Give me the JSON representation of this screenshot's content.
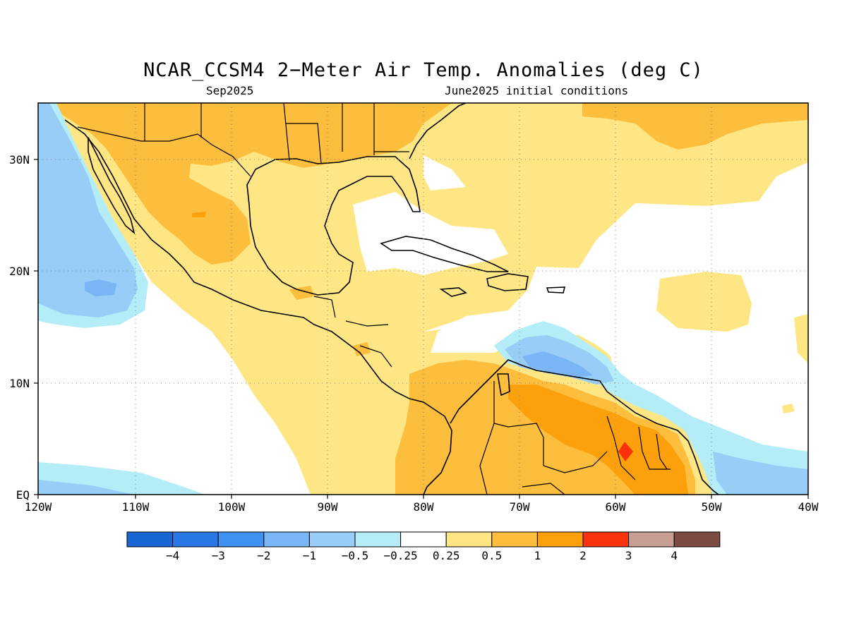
{
  "title": "NCAR_CCSM4 2−Meter Air Temp. Anomalies (deg C)",
  "subtitle_left": "Sep2025",
  "subtitle_right": "June2025 initial conditions",
  "map": {
    "lon_labels": [
      "120W",
      "110W",
      "100W",
      "90W",
      "80W",
      "70W",
      "60W",
      "50W",
      "40W"
    ],
    "lat_labels": [
      "30N",
      "20N",
      "10N",
      "EQ"
    ],
    "region": "Central America, Caribbean and northern South America",
    "extent": {
      "lon_min": -120,
      "lon_max": -40,
      "lat_min": 0,
      "lat_max": 35
    }
  },
  "legend": {
    "colors": [
      "#1865d6",
      "#2a77e8",
      "#3f92f2",
      "#7ab6f5",
      "#98cdf8",
      "#b4ecf8",
      "#ffffff",
      "#fde683",
      "#fdbd3d",
      "#fca10b",
      "#f9320b",
      "#c89d92",
      "#7b4a40"
    ],
    "labels": [
      "−4",
      "−3",
      "−2",
      "−1",
      "−0.5",
      "−0.25",
      "0.25",
      "0.5",
      "1",
      "2",
      "3",
      "4"
    ]
  }
}
